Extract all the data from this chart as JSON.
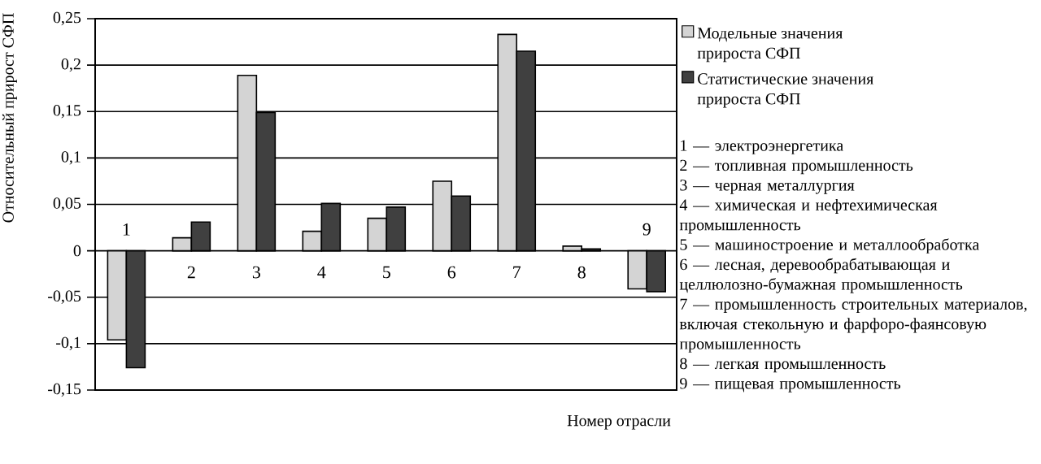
{
  "chart_data": {
    "type": "bar",
    "ylabel": "Относительный прирост СФП",
    "xlabel": "Номер отрасли",
    "categories": [
      "1",
      "2",
      "3",
      "4",
      "5",
      "6",
      "7",
      "8",
      "9"
    ],
    "series": [
      {
        "name": "Модельные значения прироста СФП",
        "color": "#d4d4d4",
        "values": [
          -0.096,
          0.014,
          0.189,
          0.021,
          0.035,
          0.075,
          0.233,
          0.005,
          -0.041
        ]
      },
      {
        "name": "Статистические значения прироста СФП",
        "color": "#404040",
        "values": [
          -0.126,
          0.031,
          0.149,
          0.051,
          0.047,
          0.059,
          0.215,
          0.002,
          -0.044
        ]
      }
    ],
    "ylim": [
      -0.15,
      0.25
    ],
    "yticks": [
      {
        "value": -0.15,
        "label": "-0,15"
      },
      {
        "value": -0.1,
        "label": "-0,1"
      },
      {
        "value": -0.05,
        "label": "-0,05"
      },
      0,
      {
        "value": 0.05,
        "label": "0,05"
      },
      {
        "value": 0.1,
        "label": "0,1"
      },
      {
        "value": 0.15,
        "label": "0,15"
      },
      {
        "value": 0.2,
        "label": "0,2"
      },
      {
        "value": 0.25,
        "label": "0,25"
      }
    ],
    "grid": "y",
    "legend": "right",
    "annotations": [
      "1 — электроэнергетика",
      "2 — топливная промышленность",
      "3 — черная металлургия",
      "4 — химическая и нефтехимическая промышленность",
      "5 — машиностроение и металлообработка",
      "6 — лесная, деревообрабатывающая и целлюлозно-бумажная промышленность",
      "7 — промышленность строительных материалов, включая стекольную и фарфоро-фаянсовую промышленность",
      "8 — легкая промышленность",
      "9 — пищевая промышленность"
    ]
  }
}
